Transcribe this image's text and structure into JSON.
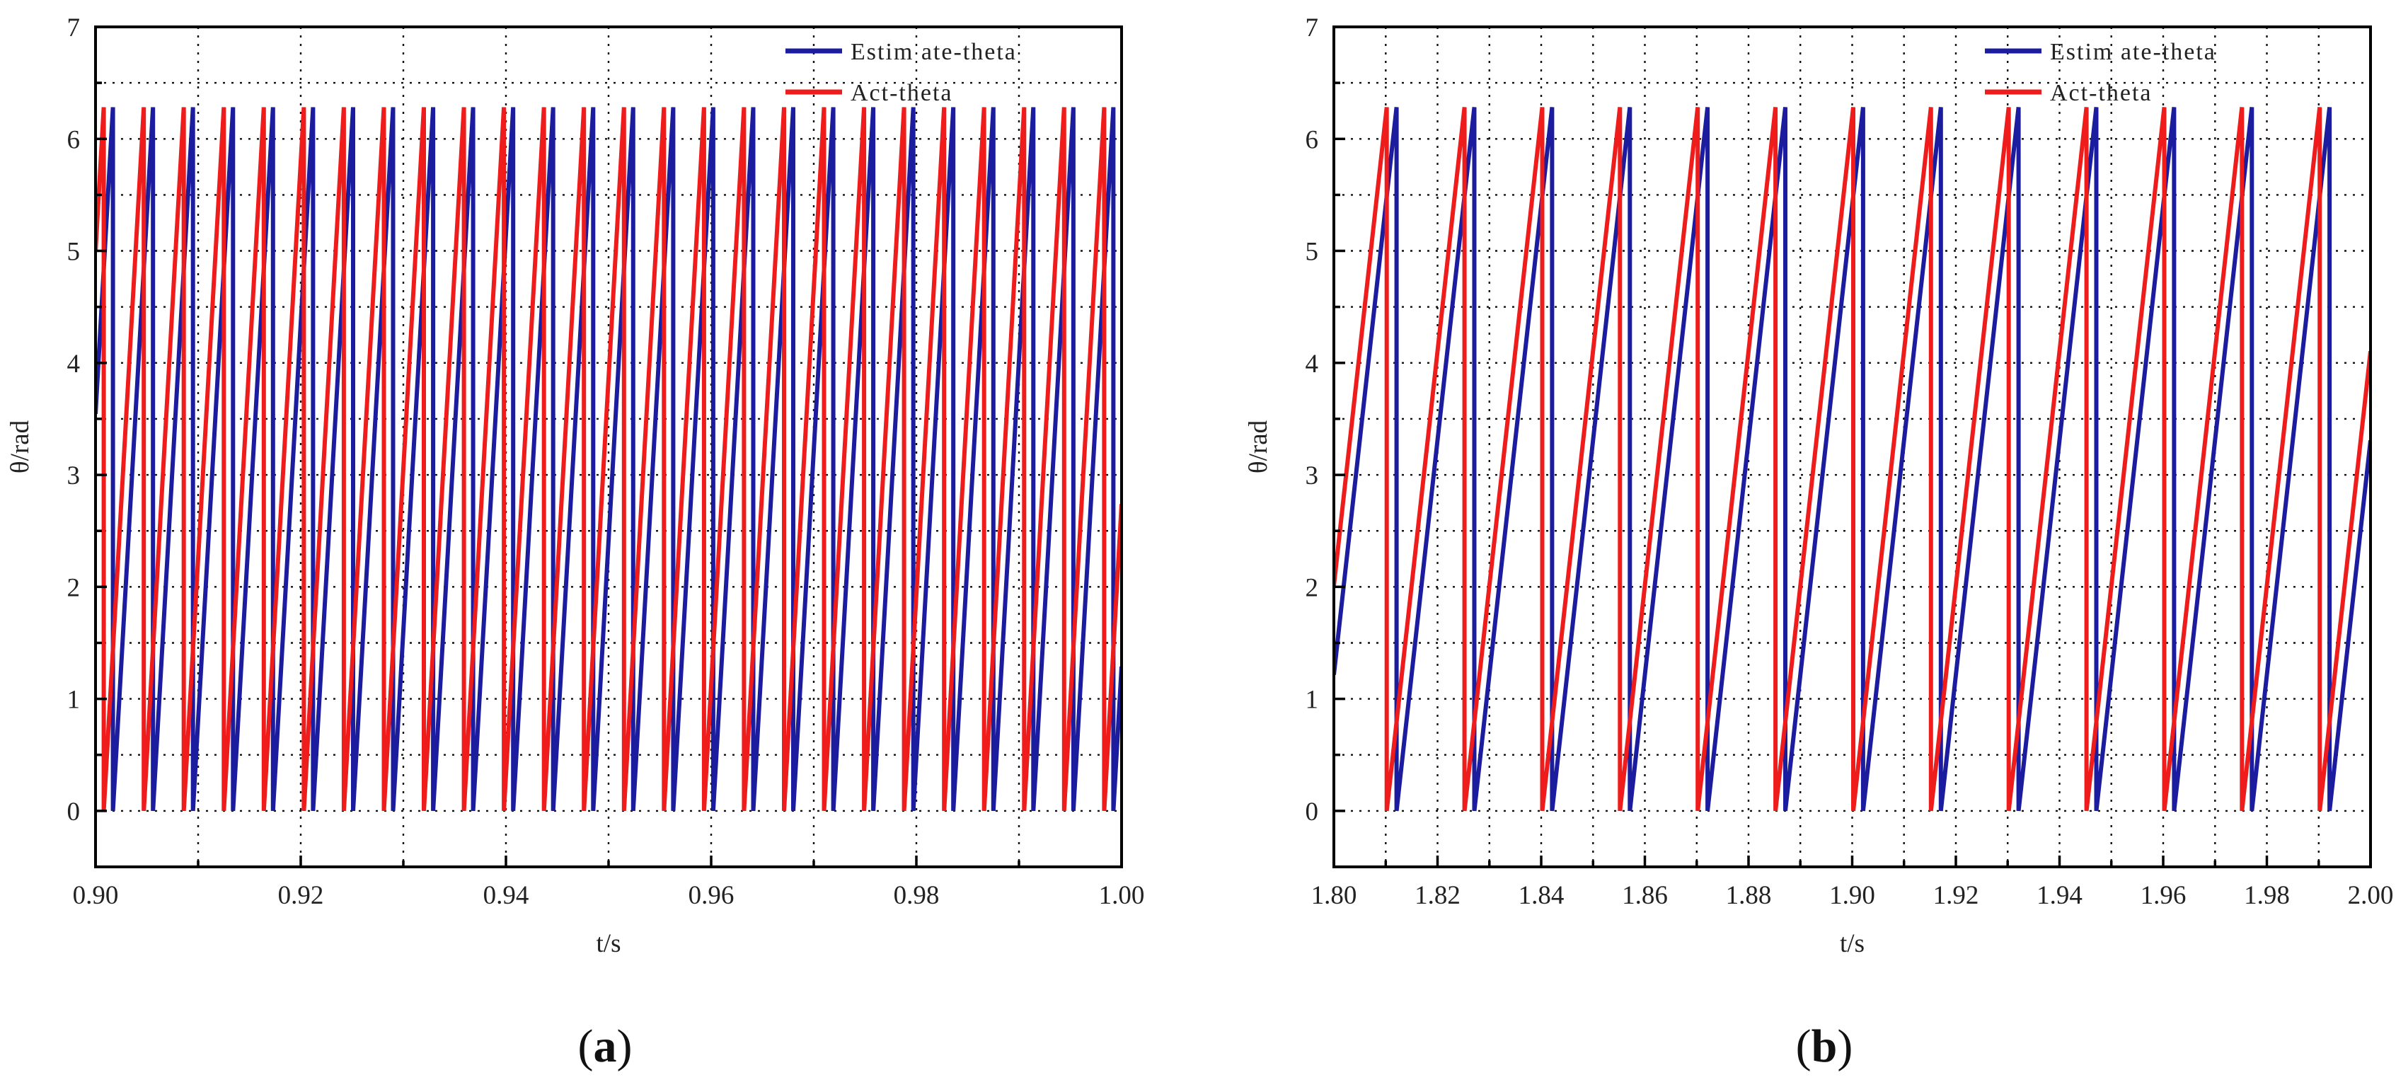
{
  "figure": {
    "panel_a_caption": {
      "open": "(",
      "letter": "a",
      "close": ")"
    },
    "panel_b_caption": {
      "open": "(",
      "letter": "b",
      "close": ")"
    }
  },
  "colors": {
    "estimate": "#1c1c9e",
    "actual": "#ef1c1c",
    "grid": "#111111",
    "axis": "#000000"
  },
  "chart_data": [
    {
      "type": "line",
      "panel": "a",
      "xlabel": "t/s",
      "ylabel": "θ/rad",
      "xlim": [
        0.9,
        1.0
      ],
      "ylim": [
        -0.5,
        7.0
      ],
      "xticks": [
        0.9,
        0.92,
        0.94,
        0.96,
        0.98,
        1.0
      ],
      "xtick_labels": [
        "0.90",
        "0.92",
        "0.94",
        "0.96",
        "0.98",
        "1.00"
      ],
      "x_minor_grid": [
        0.91,
        0.93,
        0.95,
        0.97,
        0.99
      ],
      "yticks": [
        0,
        1,
        2,
        3,
        4,
        5,
        6,
        7
      ],
      "ytick_labels": [
        "0",
        "1",
        "2",
        "3",
        "4",
        "5",
        "6",
        "7"
      ],
      "y_minor_grid": [
        0.5,
        1.5,
        2.5,
        3.5,
        4.5,
        5.5,
        6.5
      ],
      "grid": true,
      "legend": "top-right",
      "series": [
        {
          "name": "Estimate-theta",
          "legend_label": "Estim ate-theta",
          "color": "#1c1c9e",
          "waveform": "sawtooth",
          "min": 0,
          "max": 6.283,
          "period": 0.0039,
          "first_wrap": 0.9017
        },
        {
          "name": "Act-theta",
          "legend_label": "Act-theta",
          "color": "#ef1c1c",
          "waveform": "sawtooth",
          "min": 0,
          "max": 6.283,
          "period": 0.0039,
          "first_wrap": 0.9008
        }
      ]
    },
    {
      "type": "line",
      "panel": "b",
      "xlabel": "t/s",
      "ylabel": "θ/rad",
      "xlim": [
        1.8,
        2.0
      ],
      "ylim": [
        -0.5,
        7.0
      ],
      "xticks": [
        1.8,
        1.82,
        1.84,
        1.86,
        1.88,
        1.9,
        1.92,
        1.94,
        1.96,
        1.98,
        2.0
      ],
      "xtick_labels": [
        "1.80",
        "1.82",
        "1.84",
        "1.86",
        "1.88",
        "1.90",
        "1.92",
        "1.94",
        "1.96",
        "1.98",
        "2.00"
      ],
      "x_minor_grid": [
        1.81,
        1.83,
        1.85,
        1.87,
        1.89,
        1.91,
        1.93,
        1.95,
        1.97,
        1.99
      ],
      "yticks": [
        0,
        1,
        2,
        3,
        4,
        5,
        6,
        7
      ],
      "ytick_labels": [
        "0",
        "1",
        "2",
        "3",
        "4",
        "5",
        "6",
        "7"
      ],
      "y_minor_grid": [
        0.5,
        1.5,
        2.5,
        3.5,
        4.5,
        5.5,
        6.5
      ],
      "grid": true,
      "legend": "top-right",
      "series": [
        {
          "name": "Estimate-theta",
          "legend_label": "Estim ate-theta",
          "color": "#1c1c9e",
          "waveform": "sawtooth",
          "min": 0,
          "max": 6.283,
          "period": 0.015,
          "first_wrap": 1.8121
        },
        {
          "name": "Act-theta",
          "legend_label": "Act-theta",
          "color": "#ef1c1c",
          "waveform": "sawtooth",
          "min": 0,
          "max": 6.283,
          "period": 0.015,
          "first_wrap": 1.8102
        }
      ]
    }
  ]
}
